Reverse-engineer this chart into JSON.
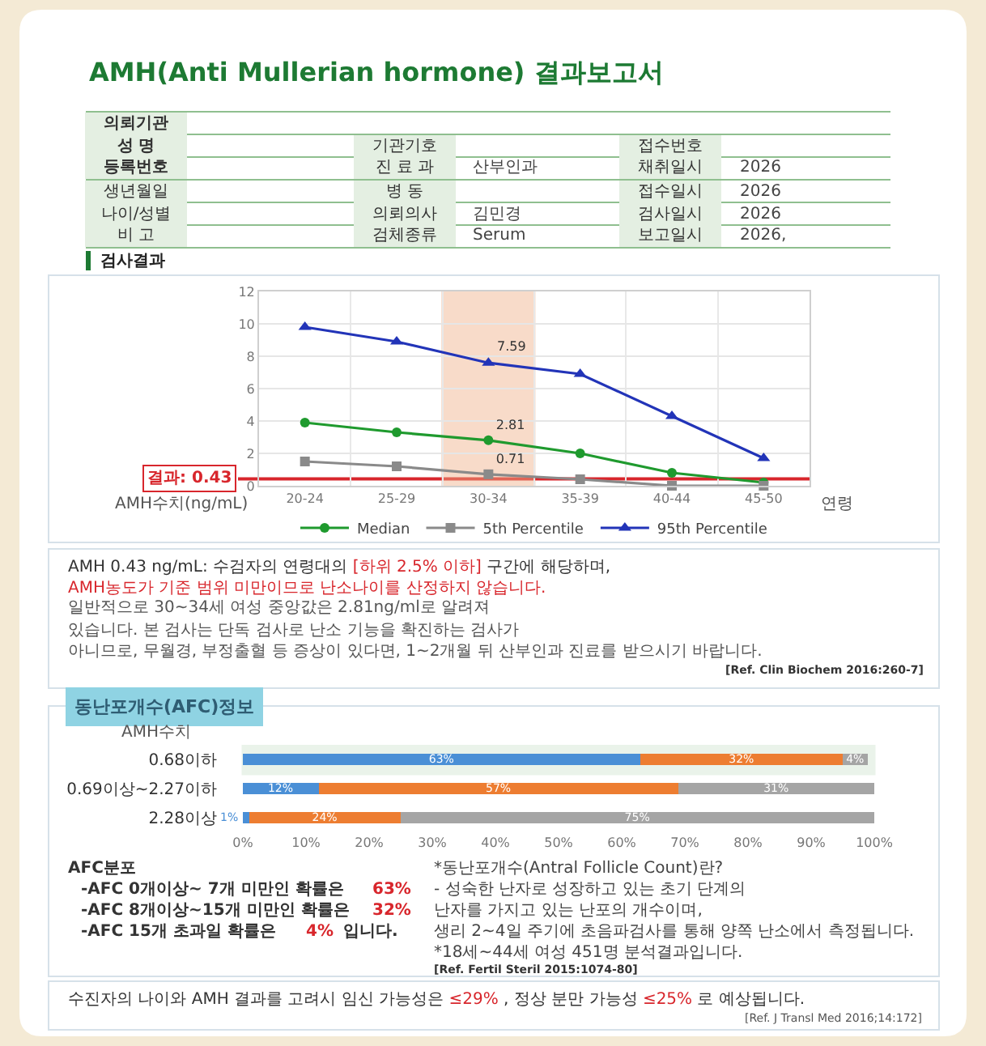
{
  "chart_data": [
    {
      "type": "other",
      "title": "AMH(Anti Mullerian hormone) 결과보고서",
      "annotations": [
        "의뢰기관",
        "성 명",
        "기관기호",
        "접수번호",
        "등록번호",
        "진 료 과",
        "산부인과",
        "채취일시",
        "2026",
        "생년월일",
        "병 동",
        "접수일시",
        "2026",
        "나이/성별",
        "의뢰의사",
        "김민경",
        "검사일시",
        "2026",
        "비 고",
        "검체종류",
        "Serum",
        "보고일시",
        "2026,",
        "검사결과"
      ]
    },
    {
      "type": "line",
      "categories": [
        "20-24",
        "25-29",
        "30-34",
        "35-39",
        "40-44",
        "45-50"
      ],
      "xlabel": "연령",
      "ylabel": "AMH수치(ng/mL)",
      "ylim": [
        0,
        12
      ],
      "yticks": [
        0,
        2,
        4,
        6,
        8,
        10,
        12
      ],
      "grid": true,
      "legend": "bottom",
      "series": [
        {
          "name": "Median",
          "color": "#1f9a2e",
          "marker": "circle",
          "values": [
            3.9,
            3.3,
            2.81,
            2.0,
            0.8,
            0.2
          ],
          "value_labels": [
            null,
            null,
            "2.81",
            null,
            null,
            null
          ]
        },
        {
          "name": "5th Percentile",
          "color": "#8a8a8a",
          "marker": "square",
          "values": [
            1.5,
            1.2,
            0.71,
            0.4,
            0,
            0
          ],
          "value_labels": [
            null,
            null,
            "0.71",
            null,
            null,
            null
          ]
        },
        {
          "name": "95th Percentile",
          "color": "#2234b8",
          "marker": "triangle",
          "values": [
            9.8,
            8.9,
            7.59,
            6.9,
            4.3,
            1.7
          ],
          "value_labels": [
            null,
            null,
            "7.59",
            null,
            null,
            null
          ]
        }
      ],
      "ref_lines": [
        {
          "axis": "y",
          "value": 0.43,
          "label": "결과: 0.43",
          "color": "#d8262c"
        }
      ],
      "bands": [
        {
          "axis": "x",
          "from": "30-34",
          "to": "30-34",
          "color": "#f0b088"
        }
      ],
      "annotations": [
        "AMH 0.43 ng/mL: 수검자의 연령대의",
        "[하위 2.5% 이하]",
        "구간에 해당하며,",
        "AMH농도가 기준 범위 미만이므로 난소나이를 산정하지 않습니다.",
        "일반적으로 30~34세 여성 중앙값은 2.81ng/ml로 알려져 있습니다. 본 검사는 단독 검사로 난소 기능을 확진하는 검사가",
        "아니므로, 무월경, 부정출혈 등 증상이 있다면, 1~2개월 뒤 산부인과 진료를 받으시기 바랍니다.",
        "[Ref. Clin Biochem 2016:260-7]"
      ]
    },
    {
      "type": "bar",
      "orientation": "horizontal",
      "stacked": true,
      "title": "동난포개수(AFC)정보",
      "ylabel": "AMH수치",
      "categories": [
        "0.68이하",
        "0.69이상~2.27이하",
        "2.28이상"
      ],
      "series": [
        {
          "color": "#4a8fd6",
          "values": [
            63,
            12,
            1
          ],
          "value_labels": [
            "63%",
            "12%",
            "1%"
          ]
        },
        {
          "color": "#ed7d31",
          "values": [
            32,
            57,
            24
          ],
          "value_labels": [
            "32%",
            "57%",
            "24%"
          ]
        },
        {
          "color": "#a5a5a5",
          "values": [
            4,
            31,
            75
          ],
          "value_labels": [
            "4%",
            "31%",
            "75%"
          ]
        }
      ],
      "xlim": [
        0,
        100
      ],
      "xticks": [
        {
          "value": 0,
          "label": "0%"
        },
        {
          "value": 10,
          "label": "10%"
        },
        {
          "value": 20,
          "label": "20%"
        },
        {
          "value": 30,
          "label": "30%"
        },
        {
          "value": 40,
          "label": "40%"
        },
        {
          "value": 50,
          "label": "50%"
        },
        {
          "value": 60,
          "label": "60%"
        },
        {
          "value": 70,
          "label": "70%"
        },
        {
          "value": 80,
          "label": "80%"
        },
        {
          "value": 90,
          "label": "90%"
        },
        {
          "value": 100,
          "label": "100%"
        }
      ],
      "bands": [
        {
          "axis": "y",
          "from": "0.68이하",
          "to": "0.68이하",
          "color": "#5aa65a"
        }
      ],
      "annotations": [
        "AFC분포",
        "-AFC 0개이상~ 7개 미만인 확률은",
        "63%",
        "-AFC 8개이상~15개 미만인 확률은",
        "32%",
        "-AFC 15개 초과일 확률은",
        "4%",
        "입니다.",
        "*동난포개수(Antral Follicle Count)란?",
        "- 성숙한 난자로 성장하고 있는 초기 단계의 난자를 가지고 있는 난포의 개수이며,",
        "생리 2~4일 주기에 초음파검사를 통해 양쪽 난소에서 측정됩니다.",
        "*18세~44세 여성 451명 분석결과입니다.",
        "[Ref. Fertil Steril 2015:1074-80]",
        "수진자의 나이와 AMH 결과를 고려시 임신 가능성은",
        "≤29%",
        ", 정상 분만 가능성",
        "≤25%",
        "로 예상됩니다.",
        "[Ref. J Transl Med 2016;14:172]"
      ]
    }
  ]
}
